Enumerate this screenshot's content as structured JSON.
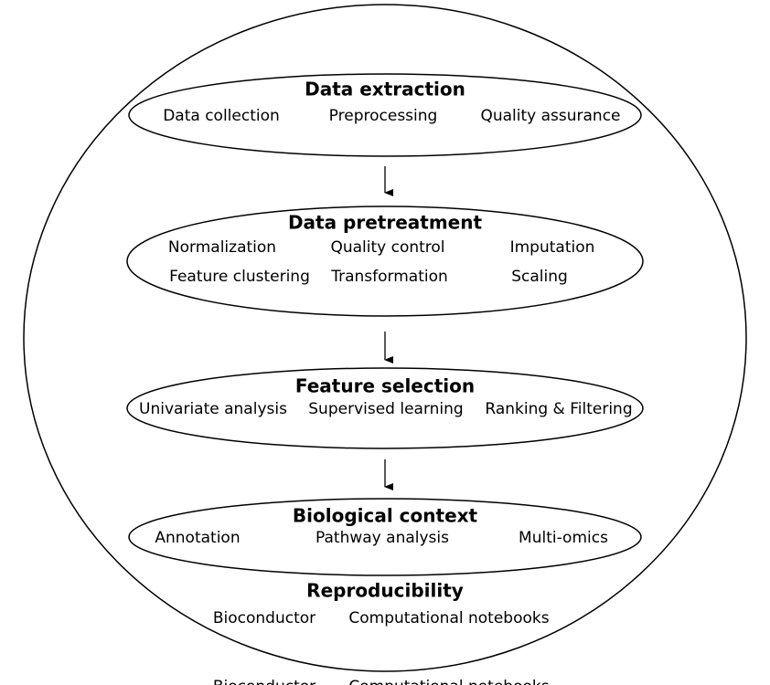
{
  "stages": [
    {
      "title": "Data extraction",
      "items": [
        "Data collection",
        "Preprocessing",
        "Quality assurance"
      ]
    },
    {
      "title": "Data pretreatment",
      "items": [
        "Normalization",
        "Quality control",
        "Imputation",
        "Feature clustering",
        "Transformation",
        "Scaling"
      ]
    },
    {
      "title": "Feature selection",
      "items": [
        "Univariate analysis",
        "Supervised learning",
        "Ranking & Filtering"
      ]
    },
    {
      "title": "Biological context",
      "items": [
        "Annotation",
        "Pathway analysis",
        "Multi-omics"
      ]
    }
  ],
  "reproducibility": {
    "title": "Reproducibility",
    "items": [
      "Bioconductor",
      "Computational notebooks"
    ]
  },
  "footer": {
    "items": [
      "Bioconductor",
      "Computational notebooks"
    ]
  }
}
